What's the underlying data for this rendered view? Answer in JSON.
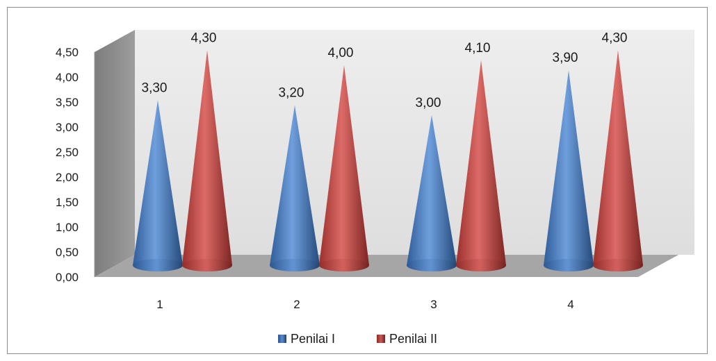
{
  "chart_data": {
    "type": "bar",
    "style": "3d-cone",
    "categories": [
      "1",
      "2",
      "3",
      "4"
    ],
    "series": [
      {
        "name": "Penilai I",
        "values": [
          3.3,
          3.2,
          3.0,
          3.9
        ],
        "labels": [
          "3,30",
          "3,20",
          "3,00",
          "3,90"
        ],
        "color": "#4a7ebb"
      },
      {
        "name": "Penilai II",
        "values": [
          4.3,
          4.0,
          4.1,
          4.3
        ],
        "labels": [
          "4,30",
          "4,00",
          "4,10",
          "4,30"
        ],
        "color": "#be4b48"
      }
    ],
    "yticks": [
      "0,00",
      "0,50",
      "1,00",
      "1,50",
      "2,00",
      "2,50",
      "3,00",
      "3,50",
      "4,00",
      "4,50"
    ],
    "ylim": [
      0,
      4.5
    ],
    "grid": false,
    "legend": "bottom",
    "wall_color": "#e8e8e8",
    "floor_color": "#a6a6a6",
    "side_wall_color": "#8f8f8f"
  }
}
